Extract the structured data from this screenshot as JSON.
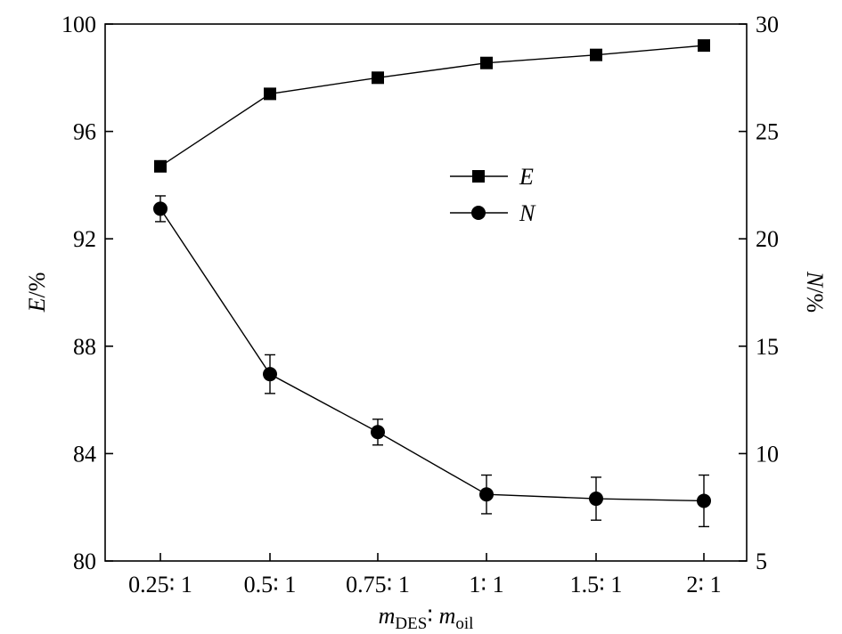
{
  "chart_data": {
    "type": "line",
    "categories": [
      "0.25∶ 1",
      "0.5∶ 1",
      "0.75∶ 1",
      "1∶ 1",
      "1.5∶ 1",
      "2∶ 1"
    ],
    "xlabel": {
      "main": "m",
      "sub1": "DES",
      "sep": "∶ ",
      "main2": "m",
      "sub2": "oil"
    },
    "ylabel_left": {
      "var": "E",
      "unit": "/%"
    },
    "ylabel_right": {
      "var": "N",
      "unit": "/%"
    },
    "ylim_left": [
      80,
      100
    ],
    "yticks_left": [
      80,
      84,
      88,
      92,
      96,
      100
    ],
    "ylim_right": [
      5,
      30
    ],
    "yticks_right": [
      5,
      10,
      15,
      20,
      25,
      30
    ],
    "grid": false,
    "legend_position": "center-top",
    "series": [
      {
        "name": "E",
        "axis": "left",
        "marker": "square",
        "values": [
          94.7,
          97.4,
          98.0,
          98.55,
          98.85,
          99.2
        ]
      },
      {
        "name": "N",
        "axis": "right",
        "marker": "circle",
        "values": [
          21.4,
          13.7,
          11.0,
          8.1,
          7.9,
          7.8
        ],
        "errors": [
          0.6,
          0.9,
          0.6,
          0.9,
          1.0,
          1.2
        ]
      }
    ]
  }
}
